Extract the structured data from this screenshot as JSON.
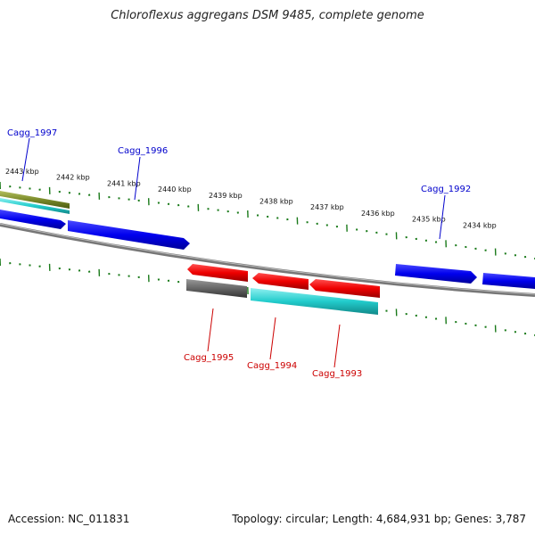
{
  "title": "Chloroflexus aggregans DSM 9485, complete genome",
  "footer": {
    "accession": "Accession: NC_011831",
    "stats": "Topology: circular; Length: 4,684,931 bp; Genes: 3,787"
  },
  "ticks": [
    {
      "label": "2443 kbp"
    },
    {
      "label": "2442 kbp"
    },
    {
      "label": "2441 kbp"
    },
    {
      "label": "2440 kbp"
    },
    {
      "label": "2439 kbp"
    },
    {
      "label": "2438 kbp"
    },
    {
      "label": "2437 kbp"
    },
    {
      "label": "2436 kbp"
    },
    {
      "label": "2435 kbp"
    },
    {
      "label": "2434 kbp"
    }
  ],
  "genes": [
    {
      "label": "Cagg_1997",
      "strand": "+",
      "color": "#0000cc"
    },
    {
      "label": "Cagg_1996",
      "strand": "+",
      "color": "#0000cc"
    },
    {
      "label": "Cagg_1992",
      "strand": "+",
      "color": "#0000cc"
    },
    {
      "label": "Cagg_1995",
      "strand": "-",
      "color": "#cc0000"
    },
    {
      "label": "Cagg_1994",
      "strand": "-",
      "color": "#cc0000"
    },
    {
      "label": "Cagg_1993",
      "strand": "-",
      "color": "#cc0000"
    }
  ],
  "colors": {
    "forward_cds": "#0000ee",
    "reverse_cds": "#ee0000",
    "tick_green": "#1a7a1a",
    "teal_feature": "#22cccc",
    "gray_feature": "#666666",
    "olive_feature": "#7a8a2a",
    "backbone": "#888888"
  }
}
